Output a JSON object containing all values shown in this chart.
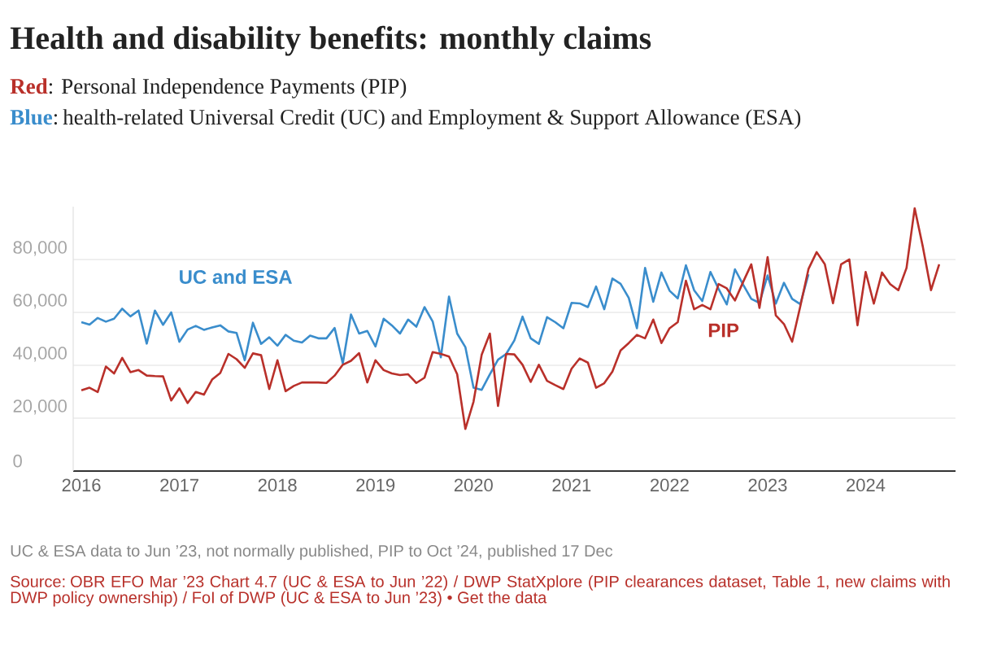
{
  "chart_data": {
    "type": "line",
    "title": "Health and disability benefits: monthly claims",
    "subtitle": "**Red**: Personal Independence Payments (PIP)",
    "annotations": [
      "**Blue**: health-related Universal Credit (UC) and Employment & Support Allowance (ESA)",
      "UC & ESA data to Jun ’23, not normally published, PIP to Oct ’24, published 17 Dec",
      "Source: OBR EFO Mar ’23 Chart 4.7 (UC & ESA to Jun ’22) / DWP StatXplore (PIP clearances dataset, Table 1, new claims with DWP policy ownership) / FoI of DWP (UC & ESA to Jun ’23) • Get the data"
    ],
    "x": [
      "2016-01",
      "2016-02",
      "2016-03",
      "2016-04",
      "2016-05",
      "2016-06",
      "2016-07",
      "2016-08",
      "2016-09",
      "2016-10",
      "2016-11",
      "2016-12",
      "2017-01",
      "2017-02",
      "2017-03",
      "2017-04",
      "2017-05",
      "2017-06",
      "2017-07",
      "2017-08",
      "2017-09",
      "2017-10",
      "2017-11",
      "2017-12",
      "2018-01",
      "2018-02",
      "2018-03",
      "2018-04",
      "2018-05",
      "2018-06",
      "2018-07",
      "2018-08",
      "2018-09",
      "2018-10",
      "2018-11",
      "2018-12",
      "2019-01",
      "2019-02",
      "2019-03",
      "2019-04",
      "2019-05",
      "2019-06",
      "2019-07",
      "2019-08",
      "2019-09",
      "2019-10",
      "2019-11",
      "2019-12",
      "2020-01",
      "2020-02",
      "2020-03",
      "2020-04",
      "2020-05",
      "2020-06",
      "2020-07",
      "2020-08",
      "2020-09",
      "2020-10",
      "2020-11",
      "2020-12",
      "2021-01",
      "2021-02",
      "2021-03",
      "2021-04",
      "2021-05",
      "2021-06",
      "2021-07",
      "2021-08",
      "2021-09",
      "2021-10",
      "2021-11",
      "2021-12",
      "2022-01",
      "2022-02",
      "2022-03",
      "2022-04",
      "2022-05",
      "2022-06",
      "2022-07",
      "2022-08",
      "2022-09",
      "2022-10",
      "2022-11",
      "2022-12",
      "2023-01",
      "2023-02",
      "2023-03",
      "2023-04",
      "2023-05",
      "2023-06",
      "2023-07",
      "2023-08",
      "2023-09",
      "2023-10",
      "2023-11",
      "2023-12",
      "2024-01",
      "2024-02",
      "2024-03",
      "2024-04",
      "2024-05",
      "2024-06",
      "2024-07",
      "2024-08",
      "2024-09",
      "2024-10"
    ],
    "series": [
      {
        "name": "UC and ESA",
        "color": "#3a8dcc",
        "values": [
          56300,
          55400,
          57900,
          56500,
          57600,
          61400,
          58500,
          60700,
          48200,
          60700,
          55300,
          60000,
          48900,
          53500,
          54900,
          53400,
          54300,
          55100,
          52800,
          52200,
          41900,
          56100,
          48100,
          50600,
          47400,
          51500,
          49300,
          48600,
          51200,
          50200,
          50200,
          54100,
          40700,
          59200,
          52000,
          53000,
          47100,
          57600,
          55100,
          52000,
          57300,
          54600,
          62000,
          56600,
          43000,
          66000,
          52000,
          46900,
          31500,
          30700,
          36600,
          42100,
          44300,
          49400,
          58400,
          50200,
          48100,
          58200,
          56300,
          54000,
          63600,
          63400,
          62000,
          69800,
          61200,
          72800,
          70800,
          65500,
          54000,
          76800,
          64000,
          75100,
          68200,
          65300,
          77800,
          68400,
          64300,
          75300,
          68900,
          63000,
          76300,
          70500,
          65100,
          63600,
          74000,
          63300,
          71200,
          65100,
          63100,
          74400,
          null,
          null,
          null,
          null,
          null,
          null,
          null,
          null,
          null,
          null,
          null,
          null,
          null,
          null,
          null,
          null
        ]
      },
      {
        "name": "PIP",
        "color": "#b9302a",
        "values": [
          30500,
          31500,
          29900,
          39500,
          36900,
          42800,
          37400,
          38200,
          36100,
          35900,
          35800,
          26700,
          31300,
          25700,
          29900,
          28900,
          34600,
          37100,
          44300,
          42300,
          39000,
          44500,
          43800,
          31000,
          41900,
          30200,
          32200,
          33500,
          33500,
          33500,
          33300,
          36100,
          40200,
          41700,
          44600,
          33500,
          41900,
          38200,
          36900,
          36300,
          36600,
          33300,
          35300,
          45000,
          44300,
          43300,
          36600,
          15900,
          26200,
          44000,
          52000,
          24600,
          44300,
          44100,
          40200,
          33700,
          40200,
          34100,
          32500,
          31000,
          38700,
          42600,
          41000,
          31500,
          33200,
          37600,
          45600,
          48400,
          51500,
          50200,
          57300,
          48400,
          54000,
          56300,
          72000,
          61200,
          62800,
          61200,
          70700,
          69100,
          64500,
          71500,
          78200,
          61700,
          80900,
          58900,
          55600,
          48900,
          62300,
          76400,
          82800,
          78200,
          63500,
          78200,
          80000,
          55100,
          75300,
          63300,
          75100,
          70700,
          68400,
          76800,
          99400,
          84800,
          68400,
          78200
        ]
      }
    ],
    "xlim": [
      "2015-12",
      "2024-12"
    ],
    "xticks": [
      {
        "value": "2016-01",
        "label": "2016"
      },
      {
        "value": "2017-01",
        "label": "2017"
      },
      {
        "value": "2018-01",
        "label": "2018"
      },
      {
        "value": "2019-01",
        "label": "2019"
      },
      {
        "value": "2020-01",
        "label": "2020"
      },
      {
        "value": "2021-01",
        "label": "2021"
      },
      {
        "value": "2022-01",
        "label": "2022"
      },
      {
        "value": "2023-01",
        "label": "2023"
      },
      {
        "value": "2024-01",
        "label": "2024"
      }
    ],
    "ylim": [
      0,
      100000
    ],
    "yticks": [
      0,
      {
        "value": 20000,
        "label": "20,000"
      },
      {
        "value": 40000,
        "label": "40,000"
      },
      {
        "value": 60000,
        "label": "60,000"
      },
      {
        "value": 80000,
        "label": "80,000"
      }
    ],
    "grid": "y"
  }
}
